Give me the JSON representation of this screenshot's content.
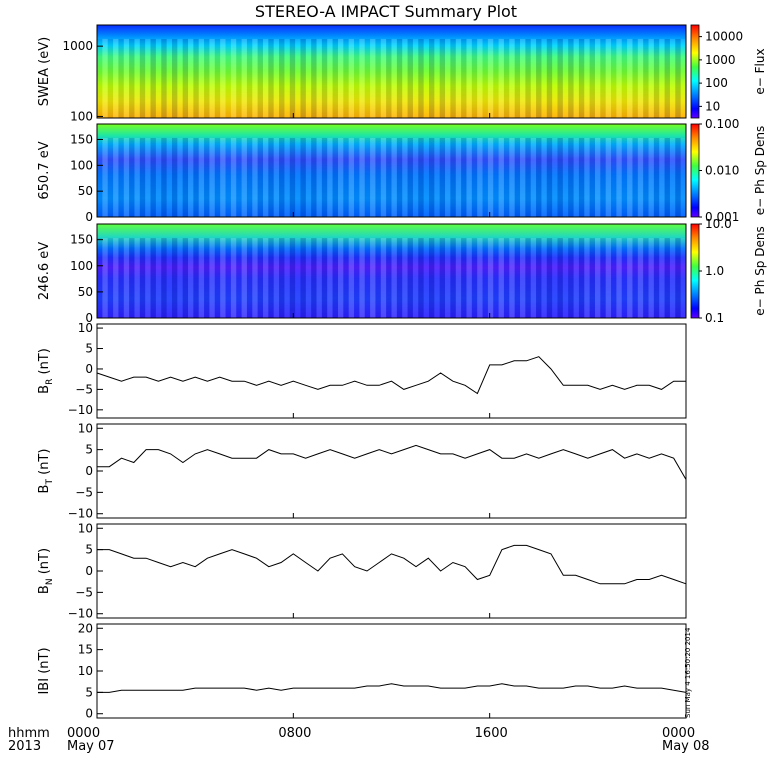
{
  "title": "STEREO-A IMPACT Summary Plot",
  "footer": {
    "row1_label": "hhmm",
    "row2_label": "2013",
    "ticks": [
      {
        "t": 0,
        "top": "0000",
        "bottom": "May 07"
      },
      {
        "t": 8,
        "top": "0800",
        "bottom": ""
      },
      {
        "t": 16,
        "top": "1600",
        "bottom": ""
      },
      {
        "t": 24,
        "top": "0000",
        "bottom": "May 08"
      }
    ]
  },
  "side_stamp": "Sun May  4 16:50:20 2014",
  "colors": {
    "spectrogram": [
      "#ff0000",
      "#ff8c00",
      "#ffff00",
      "#40ff40",
      "#00ffff",
      "#0080ff",
      "#0000ff",
      "#6000ff"
    ],
    "line": "#000000"
  },
  "chart_data": [
    {
      "type": "heatmap",
      "ylabel": "SWEA (eV)",
      "yscale": "log",
      "ylim": [
        95,
        2000
      ],
      "yticks": [
        "100",
        "1000"
      ],
      "colorbar": {
        "label": "e− Flux",
        "scale": "log",
        "ticks": [
          "10",
          "100",
          "1000",
          "10000"
        ]
      },
      "xlim": [
        0,
        24
      ],
      "description_rows": "flux decreasing with energy: yellow/orange near 100 eV, green mid, blue above ~800 eV"
    },
    {
      "type": "heatmap",
      "ylabel": "650.7 eV",
      "ylim": [
        0,
        180
      ],
      "yticks": [
        "0",
        "50",
        "100",
        "150"
      ],
      "colorbar": {
        "label": "e− Ph Sp Dens",
        "scale": "log",
        "ticks": [
          "0.001",
          "0.010",
          "0.100"
        ]
      },
      "xlim": [
        0,
        24
      ]
    },
    {
      "type": "heatmap",
      "ylabel": "246.6 eV",
      "ylim": [
        0,
        180
      ],
      "yticks": [
        "0",
        "50",
        "100",
        "150"
      ],
      "colorbar": {
        "label": "e− Ph Sp Dens",
        "scale": "log",
        "ticks": [
          "0.1",
          "1.0",
          "10.0"
        ]
      },
      "xlim": [
        0,
        24
      ]
    },
    {
      "type": "line",
      "ylabel": "B_R (nT)",
      "ylabel_main": "B",
      "ylabel_sub": "R",
      "ylabel_unit": "(nT)",
      "ylim": [
        -12,
        11
      ],
      "yticks": [
        "10",
        "5",
        "0",
        "−5",
        "−10"
      ],
      "x": [
        0,
        0.5,
        1,
        1.5,
        2,
        2.5,
        3,
        3.5,
        4,
        4.5,
        5,
        5.5,
        6,
        6.5,
        7,
        7.5,
        8,
        8.5,
        9,
        9.5,
        10,
        10.5,
        11,
        11.5,
        12,
        12.5,
        13,
        13.5,
        14,
        14.5,
        15,
        15.5,
        16,
        16.5,
        17,
        17.5,
        18,
        18.5,
        19,
        19.5,
        20,
        20.5,
        21,
        21.5,
        22,
        22.5,
        23,
        23.5,
        24
      ],
      "y": [
        -1,
        -2,
        -3,
        -2,
        -2,
        -3,
        -2,
        -3,
        -2,
        -3,
        -2,
        -3,
        -3,
        -4,
        -3,
        -4,
        -3,
        -4,
        -5,
        -4,
        -4,
        -3,
        -4,
        -4,
        -3,
        -5,
        -4,
        -3,
        -1,
        -3,
        -4,
        -6,
        1,
        1,
        2,
        2,
        3,
        0,
        -4,
        -4,
        -4,
        -5,
        -4,
        -5,
        -4,
        -4,
        -5,
        -3,
        -3
      ]
    },
    {
      "type": "line",
      "ylabel": "B_T (nT)",
      "ylabel_main": "B",
      "ylabel_sub": "T",
      "ylabel_unit": "(nT)",
      "ylim": [
        -11,
        11
      ],
      "yticks": [
        "10",
        "5",
        "0",
        "−5",
        "−10"
      ],
      "x": [
        0,
        0.5,
        1,
        1.5,
        2,
        2.5,
        3,
        3.5,
        4,
        4.5,
        5,
        5.5,
        6,
        6.5,
        7,
        7.5,
        8,
        8.5,
        9,
        9.5,
        10,
        10.5,
        11,
        11.5,
        12,
        12.5,
        13,
        13.5,
        14,
        14.5,
        15,
        15.5,
        16,
        16.5,
        17,
        17.5,
        18,
        18.5,
        19,
        19.5,
        20,
        20.5,
        21,
        21.5,
        22,
        22.5,
        23,
        23.5,
        24
      ],
      "y": [
        1,
        1,
        3,
        2,
        5,
        5,
        4,
        2,
        4,
        5,
        4,
        3,
        3,
        3,
        5,
        4,
        4,
        3,
        4,
        5,
        4,
        3,
        4,
        5,
        4,
        5,
        6,
        5,
        4,
        4,
        3,
        4,
        5,
        3,
        3,
        4,
        3,
        4,
        5,
        4,
        3,
        4,
        5,
        3,
        4,
        3,
        4,
        3,
        -2
      ]
    },
    {
      "type": "line",
      "ylabel": "B_N (nT)",
      "ylabel_main": "B",
      "ylabel_sub": "N",
      "ylabel_unit": "(nT)",
      "ylim": [
        -11,
        11
      ],
      "yticks": [
        "10",
        "5",
        "0",
        "−5",
        "−10"
      ],
      "x": [
        0,
        0.5,
        1,
        1.5,
        2,
        2.5,
        3,
        3.5,
        4,
        4.5,
        5,
        5.5,
        6,
        6.5,
        7,
        7.5,
        8,
        8.5,
        9,
        9.5,
        10,
        10.5,
        11,
        11.5,
        12,
        12.5,
        13,
        13.5,
        14,
        14.5,
        15,
        15.5,
        16,
        16.5,
        17,
        17.5,
        18,
        18.5,
        19,
        19.5,
        20,
        20.5,
        21,
        21.5,
        22,
        22.5,
        23,
        23.5,
        24
      ],
      "y": [
        5,
        5,
        4,
        3,
        3,
        2,
        1,
        2,
        1,
        3,
        4,
        5,
        4,
        3,
        1,
        2,
        4,
        2,
        0,
        3,
        4,
        1,
        0,
        2,
        4,
        3,
        1,
        3,
        0,
        2,
        1,
        -2,
        -1,
        5,
        6,
        6,
        5,
        4,
        -1,
        -1,
        -2,
        -3,
        -3,
        -3,
        -2,
        -2,
        -1,
        -2,
        -3
      ]
    },
    {
      "type": "line",
      "ylabel": "|B| (nT)",
      "ylabel_main": "IBI",
      "ylabel_unit": "(nT)",
      "ylim": [
        -1,
        21
      ],
      "yticks": [
        "20",
        "15",
        "10",
        "5",
        "0"
      ],
      "x": [
        0,
        0.5,
        1,
        1.5,
        2,
        2.5,
        3,
        3.5,
        4,
        4.5,
        5,
        5.5,
        6,
        6.5,
        7,
        7.5,
        8,
        8.5,
        9,
        9.5,
        10,
        10.5,
        11,
        11.5,
        12,
        12.5,
        13,
        13.5,
        14,
        14.5,
        15,
        15.5,
        16,
        16.5,
        17,
        17.5,
        18,
        18.5,
        19,
        19.5,
        20,
        20.5,
        21,
        21.5,
        22,
        22.5,
        23,
        23.5,
        24
      ],
      "y": [
        5,
        5,
        5.5,
        5.5,
        5.5,
        5.5,
        5.5,
        5.5,
        6,
        6,
        6,
        6,
        6,
        5.5,
        6,
        5.5,
        6,
        6,
        6,
        6,
        6,
        6,
        6.5,
        6.5,
        7,
        6.5,
        6.5,
        6.5,
        6,
        6,
        6,
        6.5,
        6.5,
        7,
        6.5,
        6.5,
        6,
        6,
        6,
        6.5,
        6.5,
        6,
        6,
        6.5,
        6,
        6,
        6,
        5.5,
        5
      ]
    }
  ]
}
